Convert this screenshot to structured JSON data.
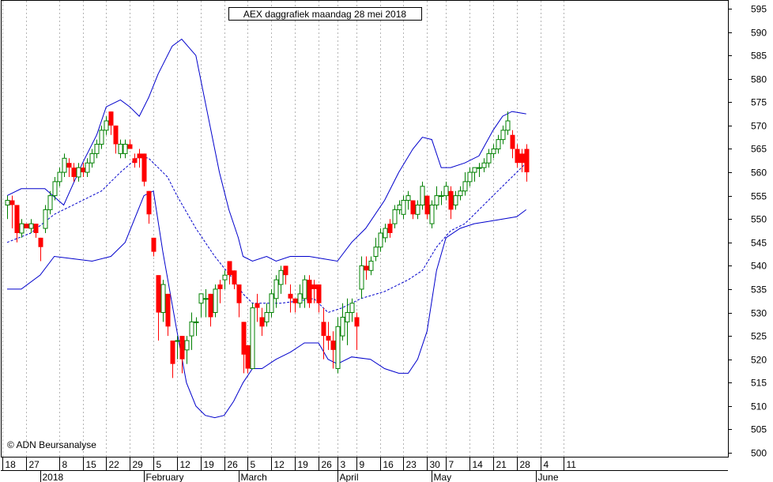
{
  "chart_data": {
    "type": "candlestick",
    "title": "AEX daggrafiek maandag 28 mei 2018",
    "copyright": "© ADN Beursanalyse",
    "ylim": [
      500,
      598
    ],
    "y_ticks": [
      500,
      505,
      510,
      515,
      520,
      525,
      530,
      535,
      540,
      545,
      550,
      555,
      560,
      565,
      570,
      575,
      580,
      585,
      590,
      595
    ],
    "day_labels": [
      {
        "label": "18",
        "day": 0
      },
      {
        "label": "27",
        "day": 5
      },
      {
        "label": "8",
        "day": 12
      },
      {
        "label": "15",
        "day": 17
      },
      {
        "label": "22",
        "day": 22
      },
      {
        "label": "29",
        "day": 27
      },
      {
        "label": "5",
        "day": 32
      },
      {
        "label": "12",
        "day": 37
      },
      {
        "label": "19",
        "day": 42
      },
      {
        "label": "26",
        "day": 47
      },
      {
        "label": "5",
        "day": 52
      },
      {
        "label": "12",
        "day": 57
      },
      {
        "label": "19",
        "day": 62
      },
      {
        "label": "26",
        "day": 67
      },
      {
        "label": "3",
        "day": 71
      },
      {
        "label": "9",
        "day": 75
      },
      {
        "label": "16",
        "day": 80
      },
      {
        "label": "23",
        "day": 85
      },
      {
        "label": "30",
        "day": 90
      },
      {
        "label": "7",
        "day": 94
      },
      {
        "label": "14",
        "day": 99
      },
      {
        "label": "21",
        "day": 104
      },
      {
        "label": "28",
        "day": 109
      },
      {
        "label": "4",
        "day": 114
      },
      {
        "label": "11",
        "day": 119
      }
    ],
    "month_labels": [
      {
        "label": "2018",
        "day": 8
      },
      {
        "label": "February",
        "day": 30
      },
      {
        "label": "March",
        "day": 50
      },
      {
        "label": "April",
        "day": 71
      },
      {
        "label": "May",
        "day": 91
      },
      {
        "label": "June",
        "day": 113
      }
    ],
    "candles": [
      [
        553,
        555,
        550,
        554
      ],
      [
        554,
        555,
        548,
        553
      ],
      [
        553,
        553,
        545,
        547
      ],
      [
        547,
        550,
        546,
        549
      ],
      [
        549,
        549,
        548,
        548
      ],
      [
        548,
        550,
        547,
        549
      ],
      [
        549,
        549,
        546,
        547
      ],
      [
        546,
        546,
        541,
        544
      ],
      [
        548,
        553,
        547,
        552
      ],
      [
        552,
        556,
        551,
        555
      ],
      [
        555,
        559,
        554,
        558
      ],
      [
        558,
        561,
        557,
        560
      ],
      [
        560,
        564,
        559,
        563
      ],
      [
        562,
        563,
        559,
        561
      ],
      [
        561,
        562,
        558,
        559
      ],
      [
        559,
        562,
        558,
        561
      ],
      [
        561,
        562,
        559,
        560
      ],
      [
        560,
        563,
        559,
        562
      ],
      [
        562,
        565,
        561,
        564
      ],
      [
        564,
        567,
        563,
        566
      ],
      [
        566,
        570,
        565,
        569
      ],
      [
        569,
        572,
        568,
        571
      ],
      [
        573,
        573,
        568,
        570
      ],
      [
        570,
        570,
        564,
        566
      ],
      [
        564,
        567,
        563,
        566
      ],
      [
        564,
        567,
        563,
        566
      ],
      [
        566,
        567,
        565,
        565
      ],
      [
        563,
        564,
        561,
        562
      ],
      [
        564,
        565,
        561,
        563
      ],
      [
        564,
        564,
        557,
        558
      ],
      [
        556,
        556,
        549,
        551
      ],
      [
        546,
        546,
        542,
        543
      ],
      [
        538,
        538,
        524,
        530
      ],
      [
        530,
        537,
        528,
        536
      ],
      [
        534,
        534,
        525,
        527
      ],
      [
        524,
        524,
        516,
        519
      ],
      [
        524,
        525,
        520,
        524
      ],
      [
        525,
        525,
        517,
        520
      ],
      [
        522,
        525,
        519,
        524
      ],
      [
        525,
        530,
        522,
        528
      ],
      [
        528,
        529,
        525,
        528
      ],
      [
        532,
        534,
        529,
        534
      ],
      [
        533,
        535,
        529,
        533
      ],
      [
        534,
        534,
        527,
        529
      ],
      [
        530,
        536,
        529,
        535
      ],
      [
        536,
        537,
        532,
        535
      ],
      [
        537,
        539,
        535,
        538
      ],
      [
        541,
        541,
        536,
        538
      ],
      [
        539,
        539,
        535,
        536
      ],
      [
        536,
        536,
        529,
        532
      ],
      [
        528,
        528,
        517,
        521
      ],
      [
        523,
        523,
        517,
        518
      ],
      [
        518,
        532,
        518,
        531
      ],
      [
        532,
        534,
        528,
        531
      ],
      [
        529,
        531,
        525,
        527
      ],
      [
        528,
        532,
        527,
        530
      ],
      [
        530,
        535,
        529,
        534
      ],
      [
        533,
        538,
        531,
        537
      ],
      [
        536,
        540,
        534,
        539
      ],
      [
        540,
        540,
        536,
        538
      ],
      [
        534,
        536,
        530,
        533
      ],
      [
        533,
        533,
        530,
        532
      ],
      [
        532,
        536,
        531,
        534
      ],
      [
        533,
        538,
        531,
        537
      ],
      [
        537,
        538,
        531,
        532
      ],
      [
        536,
        537,
        532,
        535
      ],
      [
        536,
        536,
        530,
        532
      ],
      [
        528,
        531,
        520,
        525
      ],
      [
        525,
        528,
        522,
        524
      ],
      [
        524,
        526,
        518,
        522
      ],
      [
        518,
        529,
        517,
        527
      ],
      [
        525,
        532,
        524,
        529
      ],
      [
        528,
        533,
        523,
        530
      ],
      [
        530,
        533,
        528,
        532
      ],
      [
        529,
        530,
        522,
        527
      ],
      [
        535,
        542,
        533,
        540
      ],
      [
        540,
        542,
        537,
        539
      ],
      [
        539,
        542,
        538,
        541
      ],
      [
        542,
        546,
        541,
        544
      ],
      [
        544,
        548,
        543,
        547
      ],
      [
        546,
        549,
        545,
        548
      ],
      [
        549,
        550,
        546,
        547
      ],
      [
        549,
        553,
        548,
        552
      ],
      [
        552,
        554,
        551,
        553
      ],
      [
        551,
        555,
        550,
        554
      ],
      [
        554,
        556,
        552,
        555
      ],
      [
        554,
        554,
        550,
        551
      ],
      [
        551,
        554,
        550,
        553
      ],
      [
        553,
        558,
        552,
        557
      ],
      [
        555,
        555,
        550,
        551
      ],
      [
        549,
        554,
        548,
        553
      ],
      [
        553,
        557,
        552,
        555
      ],
      [
        555,
        556,
        553,
        555
      ],
      [
        555,
        558,
        554,
        557
      ],
      [
        556,
        557,
        550,
        552
      ],
      [
        553,
        556,
        552,
        555
      ],
      [
        555,
        557,
        554,
        556
      ],
      [
        556,
        560,
        555,
        558
      ],
      [
        558,
        561,
        557,
        560
      ],
      [
        560,
        561,
        558,
        561
      ],
      [
        561,
        562,
        559,
        561
      ],
      [
        561,
        563,
        560,
        562
      ],
      [
        562,
        565,
        561,
        564
      ],
      [
        564,
        566,
        563,
        565
      ],
      [
        565,
        568,
        564,
        567
      ],
      [
        567,
        570,
        566,
        569
      ],
      [
        569,
        573,
        568,
        571
      ],
      [
        568,
        569,
        563,
        565
      ],
      [
        565,
        566,
        561,
        562
      ],
      [
        564,
        565,
        560,
        562
      ],
      [
        565,
        566,
        558,
        560
      ]
    ],
    "upper_band": [
      [
        0,
        555
      ],
      [
        3,
        556.5
      ],
      [
        8,
        556.5
      ],
      [
        12,
        553
      ],
      [
        16,
        562
      ],
      [
        19,
        568
      ],
      [
        21,
        574
      ],
      [
        24,
        575.5
      ],
      [
        26,
        574
      ],
      [
        28,
        572
      ],
      [
        30,
        576
      ],
      [
        32,
        581
      ],
      [
        35,
        587
      ],
      [
        37,
        588.5
      ],
      [
        40,
        585
      ],
      [
        42,
        575
      ],
      [
        45,
        560
      ],
      [
        47,
        552
      ],
      [
        49,
        546
      ],
      [
        50,
        542
      ],
      [
        52,
        541
      ],
      [
        55,
        542
      ],
      [
        57,
        541
      ],
      [
        60,
        542
      ],
      [
        64,
        542
      ],
      [
        67,
        541.5
      ],
      [
        70,
        541
      ],
      [
        73,
        545
      ],
      [
        76,
        548
      ],
      [
        80,
        554
      ],
      [
        83,
        560
      ],
      [
        86,
        565
      ],
      [
        88,
        567.5
      ],
      [
        90,
        567
      ],
      [
        92,
        561
      ],
      [
        94,
        561
      ],
      [
        97,
        562
      ],
      [
        100,
        563.5
      ],
      [
        103,
        569
      ],
      [
        105,
        572
      ],
      [
        107,
        573
      ],
      [
        110,
        572.5
      ]
    ],
    "middle_band": [
      [
        0,
        545
      ],
      [
        5,
        547
      ],
      [
        10,
        551
      ],
      [
        15,
        553.5
      ],
      [
        20,
        556
      ],
      [
        24,
        560
      ],
      [
        28,
        563.5
      ],
      [
        30,
        563
      ],
      [
        34,
        559
      ],
      [
        36,
        555
      ],
      [
        40,
        548
      ],
      [
        44,
        542
      ],
      [
        48,
        537
      ],
      [
        50,
        534
      ],
      [
        52,
        532
      ],
      [
        55,
        532
      ],
      [
        58,
        532
      ],
      [
        62,
        532.5
      ],
      [
        65,
        533
      ],
      [
        68,
        530
      ],
      [
        71,
        531
      ],
      [
        75,
        533
      ],
      [
        80,
        534.5
      ],
      [
        85,
        537
      ],
      [
        88,
        539
      ],
      [
        91,
        544
      ],
      [
        94,
        547.5
      ],
      [
        97,
        549
      ],
      [
        100,
        552
      ],
      [
        103,
        555
      ],
      [
        106,
        558
      ],
      [
        108,
        560
      ],
      [
        110,
        562
      ]
    ],
    "lower_band": [
      [
        0,
        535
      ],
      [
        3,
        535
      ],
      [
        7,
        538
      ],
      [
        10,
        542
      ],
      [
        14,
        541.5
      ],
      [
        18,
        541
      ],
      [
        22,
        542
      ],
      [
        25,
        545
      ],
      [
        27,
        550
      ],
      [
        29,
        555
      ],
      [
        31,
        556
      ],
      [
        33,
        543
      ],
      [
        36,
        526
      ],
      [
        38,
        515
      ],
      [
        40,
        510
      ],
      [
        42,
        508
      ],
      [
        44,
        507.5
      ],
      [
        46,
        508
      ],
      [
        48,
        511
      ],
      [
        50,
        515
      ],
      [
        52,
        518
      ],
      [
        54,
        518
      ],
      [
        57,
        520
      ],
      [
        60,
        521.5
      ],
      [
        63,
        523.5
      ],
      [
        66,
        523.5
      ],
      [
        68,
        520
      ],
      [
        70,
        519
      ],
      [
        73,
        520.5
      ],
      [
        77,
        520
      ],
      [
        80,
        518
      ],
      [
        83,
        517
      ],
      [
        85,
        517
      ],
      [
        87,
        520
      ],
      [
        89,
        526
      ],
      [
        91,
        539
      ],
      [
        93,
        546
      ],
      [
        96,
        548
      ],
      [
        99,
        549
      ],
      [
        102,
        549.5
      ],
      [
        105,
        550
      ],
      [
        108,
        550.5
      ],
      [
        110,
        552
      ]
    ],
    "colors": {
      "up": "#008000",
      "down": "#ff0000",
      "band": "#0000cc",
      "grid": "#b4b4b4"
    }
  }
}
